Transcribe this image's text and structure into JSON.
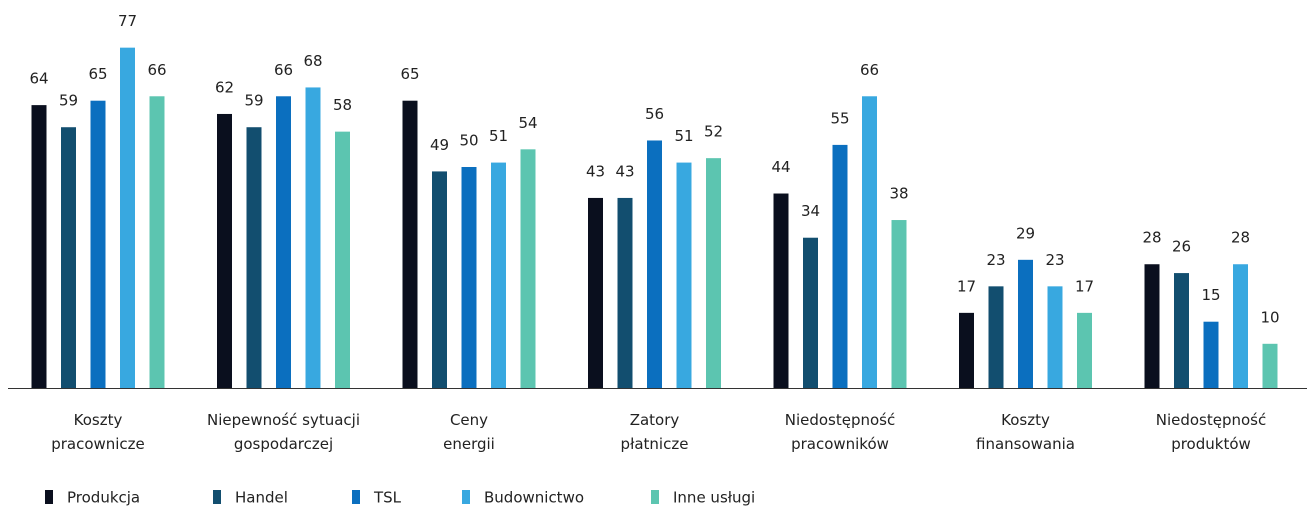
{
  "chart_data": {
    "type": "bar",
    "categories": [
      "Koszty\npracownicze",
      "Niepewność sytuacji\ngospodarczej",
      "Ceny\nenergii",
      "Zatory\npłatnicze",
      "Niedostępność\npracowników",
      "Koszty\nfinansowania",
      "Niedostępność\nproduktów"
    ],
    "series": [
      {
        "name": "Produkcja",
        "color": "#0a0f1e",
        "values": [
          64,
          62,
          65,
          43,
          44,
          17,
          28
        ]
      },
      {
        "name": "Handel",
        "color": "#124e6f",
        "values": [
          59,
          59,
          49,
          43,
          34,
          23,
          26
        ]
      },
      {
        "name": "TSL",
        "color": "#0b6fbf",
        "values": [
          65,
          66,
          50,
          56,
          55,
          29,
          15
        ]
      },
      {
        "name": "Budownictwo",
        "color": "#38a8e0",
        "values": [
          77,
          68,
          51,
          51,
          66,
          23,
          28
        ]
      },
      {
        "name": "Inne usługi",
        "color": "#5cc5b0",
        "values": [
          66,
          58,
          54,
          52,
          38,
          17,
          10
        ]
      }
    ],
    "legend": "bottom-left"
  }
}
